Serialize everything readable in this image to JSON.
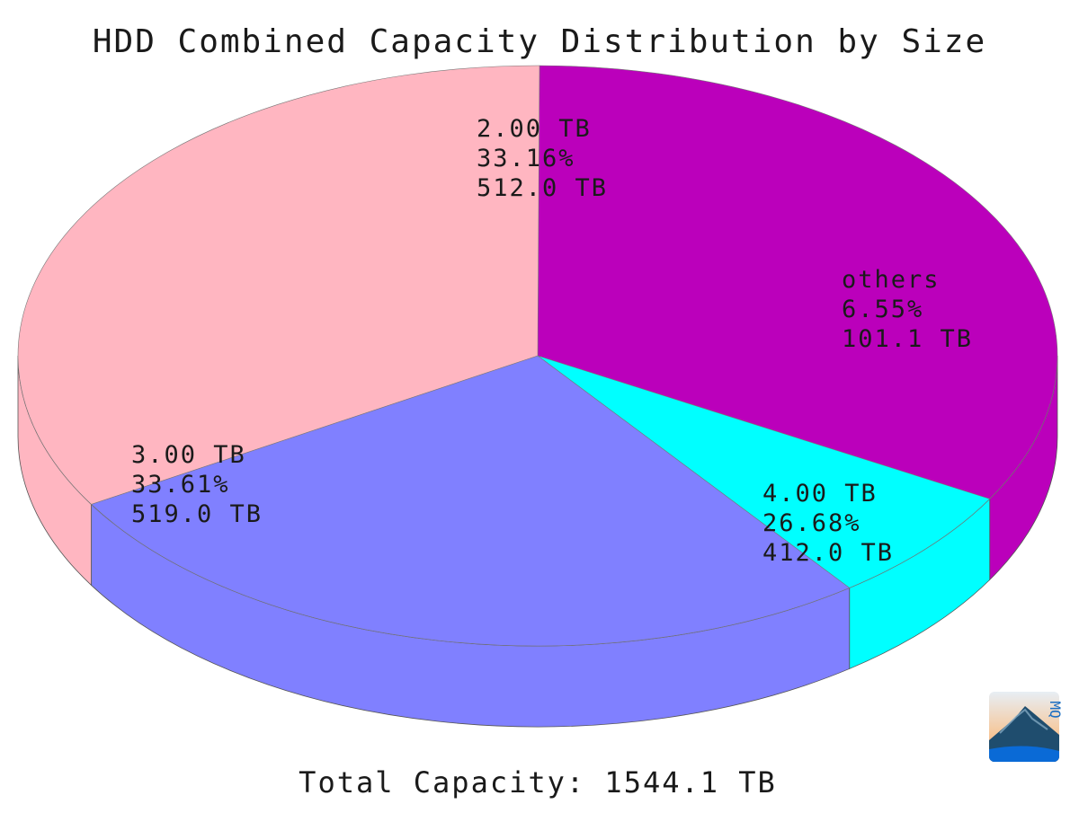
{
  "chart_data": {
    "type": "pie",
    "title": "HDD Combined Capacity Distribution by Size",
    "total_label": "Total Capacity: 1544.1 TB",
    "total_tb": 1544.1,
    "slices": [
      {
        "category": "2.00 TB",
        "percent_label": "33.16%",
        "value_label": "512.0 TB",
        "value": 512.0,
        "color": "#bb00bb"
      },
      {
        "category": "others",
        "percent_label": "6.55%",
        "value_label": "101.1 TB",
        "value": 101.1,
        "color": "#00ffff"
      },
      {
        "category": "4.00 TB",
        "percent_label": "26.68%",
        "value_label": "412.0 TB",
        "value": 412.0,
        "color": "#8080ff"
      },
      {
        "category": "3.00 TB",
        "percent_label": "33.61%",
        "value_label": "519.0 TB",
        "value": 519.0,
        "color": "#ffb6c1"
      }
    ],
    "rendering": "3d"
  },
  "logo": {
    "text": "MQ",
    "icon": "mountain-logo-icon"
  }
}
